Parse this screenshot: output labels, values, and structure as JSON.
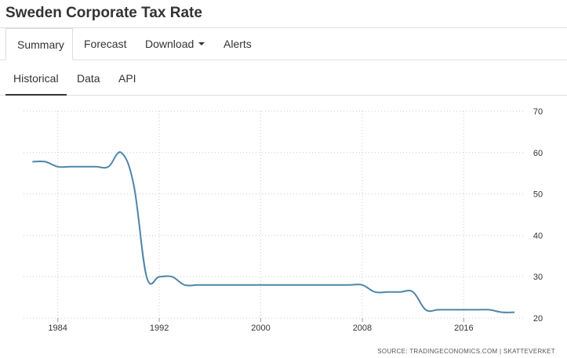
{
  "page": {
    "title": "Sweden Corporate Tax Rate"
  },
  "tabs": [
    {
      "label": "Summary",
      "active": true
    },
    {
      "label": "Forecast",
      "active": false
    },
    {
      "label": "Download",
      "active": false
    },
    {
      "label": "Alerts",
      "active": false
    }
  ],
  "subtabs": [
    {
      "label": "Historical",
      "active": true
    },
    {
      "label": "Data",
      "active": false
    },
    {
      "label": "API",
      "active": false
    }
  ],
  "source_text": "SOURCE:  TRADINGECONOMICS.COM   |   SKATTEVERKET",
  "colors": {
    "line": "#4e86a8",
    "grid": "#cccccc"
  },
  "chart_data": {
    "type": "line",
    "title": "",
    "xlabel": "",
    "ylabel": "",
    "x_ticks": [
      "1984",
      "1992",
      "2000",
      "2008",
      "2016"
    ],
    "y_ticks": [
      "70",
      "60",
      "50",
      "40",
      "30",
      "20"
    ],
    "ylim": [
      20,
      70
    ],
    "xlim": [
      1981.3,
      2020.8
    ],
    "grid": true,
    "series": [
      {
        "x": [
          1982,
          1983,
          1984,
          1985,
          1986,
          1987,
          1988,
          1989,
          1990,
          1991,
          1992,
          1993,
          1994,
          1995,
          1996,
          1997,
          1998,
          1999,
          2000,
          2001,
          2002,
          2003,
          2004,
          2005,
          2006,
          2007,
          2008,
          2009,
          2010,
          2011,
          2012,
          2013,
          2014,
          2015,
          2016,
          2017,
          2018,
          2019,
          2020
        ],
        "y": [
          57.8,
          57.8,
          56.6,
          56.6,
          56.6,
          56.6,
          56.6,
          60.0,
          52.0,
          30.0,
          30.0,
          30.0,
          28.0,
          28.0,
          28.0,
          28.0,
          28.0,
          28.0,
          28.0,
          28.0,
          28.0,
          28.0,
          28.0,
          28.0,
          28.0,
          28.0,
          28.0,
          26.3,
          26.3,
          26.3,
          26.3,
          22.0,
          22.0,
          22.0,
          22.0,
          22.0,
          22.0,
          21.4,
          21.4
        ]
      }
    ]
  }
}
